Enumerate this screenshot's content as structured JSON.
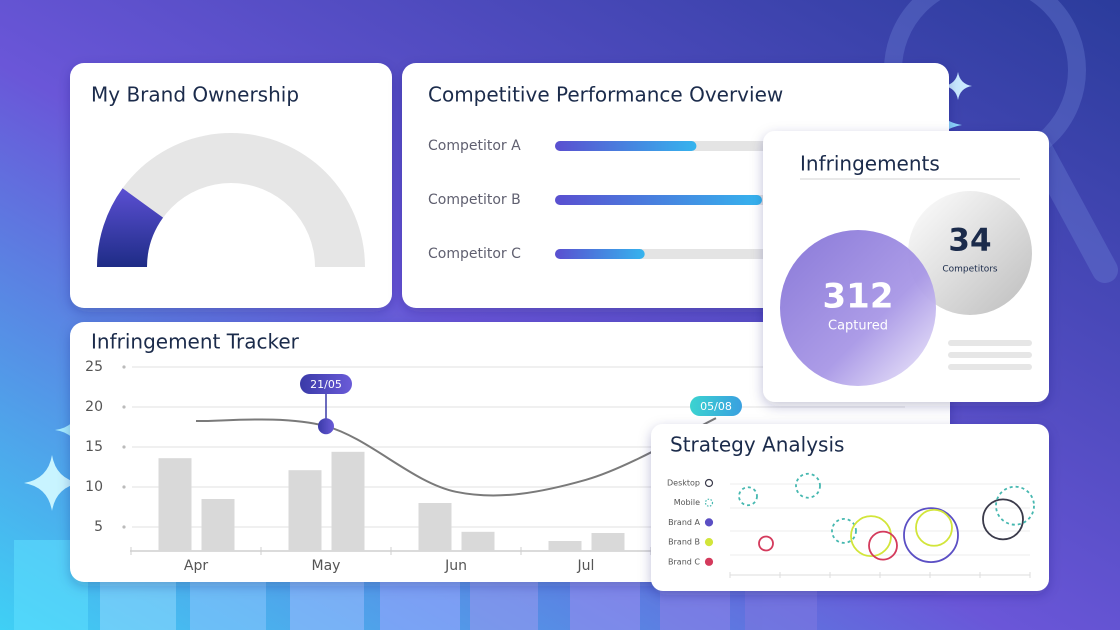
{
  "chart_data": [
    {
      "type": "gauge",
      "title": "My Brand Ownership",
      "value": 20,
      "ylim": [
        0,
        100
      ]
    },
    {
      "type": "hbar",
      "title": "Competitive Performance Overview",
      "categories": [
        "Competitor A",
        "Competitor B",
        "Competitor C"
      ],
      "values": [
        41,
        60,
        26
      ],
      "xlim": [
        0,
        100
      ]
    },
    {
      "type": "combo",
      "title": "Infringement Tracker",
      "categories": [
        "Apr",
        "May",
        "Jun",
        "Jul",
        null
      ],
      "series": [
        {
          "kind": "bar",
          "color": "#d9d9d9",
          "values": [
            13.6,
            12.1,
            8,
            3.25,
            null
          ]
        },
        {
          "kind": "bar",
          "color": "#d9d9d9",
          "values": [
            8.5,
            14.4,
            4.4,
            4.25,
            null
          ]
        },
        {
          "kind": "line",
          "color": "#7a7a7a",
          "values": [
            18.25,
            17.6,
            9.4,
            10.9,
            18.6
          ]
        }
      ],
      "annotations": [
        "21/05",
        "05/08"
      ],
      "ylim": [
        2,
        26
      ],
      "yticks": [
        5,
        10,
        15,
        20,
        25
      ],
      "grid": true
    },
    {
      "type": "scatter",
      "title": "Strategy Analysis",
      "xlim": [
        0,
        100
      ],
      "ylim": [
        0,
        100
      ],
      "series": [
        {
          "name": "Desktop",
          "color": "#3a3a4a",
          "x": [
            91
          ],
          "y": [
            53
          ],
          "size": [
            20
          ]
        },
        {
          "name": "Mobile",
          "color": "#46b8b0",
          "dashed": true,
          "x": [
            6,
            38,
            26,
            95
          ],
          "y": [
            75,
            42,
            85,
            66
          ],
          "size": [
            9,
            12,
            12,
            19
          ]
        },
        {
          "name": "Brand A",
          "color": "#5b4fc4",
          "x": [
            67
          ],
          "y": [
            38
          ],
          "size": [
            27
          ]
        },
        {
          "name": "Brand B",
          "color": "#d2e53a",
          "x": [
            47,
            68
          ],
          "y": [
            37,
            45
          ],
          "size": [
            20,
            18
          ]
        },
        {
          "name": "Brand C",
          "color": "#d43a5c",
          "x": [
            51,
            12
          ],
          "y": [
            28,
            30
          ],
          "size": [
            14,
            7
          ]
        }
      ]
    }
  ],
  "infringements": {
    "title": "Infringements",
    "captured": {
      "value": 312,
      "label": "Captured"
    },
    "competitors": {
      "value": 34,
      "label": "Competitors"
    }
  }
}
